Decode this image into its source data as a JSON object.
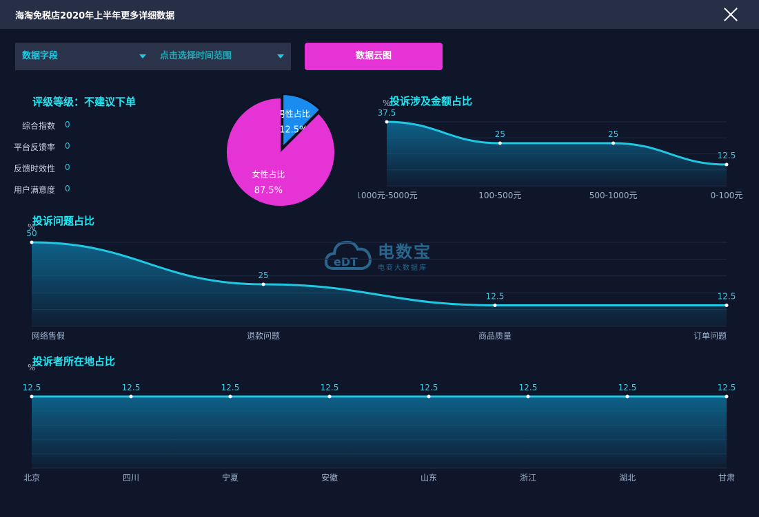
{
  "header": {
    "title": "海淘免税店2020年上半年更多详细数据"
  },
  "filters": {
    "field_label": "数据字段",
    "time_label": "点击选择时间范围",
    "cloud_button": "数据云图"
  },
  "rating": {
    "title": "评级等级：不建议下单",
    "metrics": [
      {
        "label": "综合指数",
        "value": "0"
      },
      {
        "label": "平台反馈率",
        "value": "0"
      },
      {
        "label": "反馈时效性",
        "value": "0"
      },
      {
        "label": "用户满意度",
        "value": "0"
      }
    ]
  },
  "watermark": {
    "name": "电数宝",
    "sub": "电商大数据库",
    "logo_text": "eDT"
  },
  "colors": {
    "accent": "#22e6f2",
    "pink": "#e633d6",
    "blue": "#1a8cf0",
    "line": "#1fc9e3",
    "bg": "#0f1629"
  },
  "chart_data": [
    {
      "id": "gender",
      "type": "pie",
      "title": "",
      "slices": [
        {
          "label": "男性占比",
          "value": 12.5,
          "display": "12.5%",
          "color": "#1a8cf0"
        },
        {
          "label": "女性占比",
          "value": 87.5,
          "display": "87.5%",
          "color": "#e633d6"
        }
      ]
    },
    {
      "id": "amount",
      "type": "area",
      "title": "投诉涉及金额占比",
      "ylabel": "%",
      "categories": [
        "1000元-5000元",
        "100-500元",
        "500-1000元",
        "0-100元"
      ],
      "values": [
        37.5,
        25,
        25,
        12.5
      ],
      "ylim": [
        0,
        37.5
      ]
    },
    {
      "id": "problem",
      "type": "area",
      "title": "投诉问题占比",
      "ylabel": "%",
      "categories": [
        "网络售假",
        "退款问题",
        "商品质量",
        "订单问题"
      ],
      "values": [
        50,
        25,
        12.5,
        12.5
      ],
      "ylim": [
        0,
        50
      ]
    },
    {
      "id": "location",
      "type": "area",
      "title": "投诉者所在地占比",
      "ylabel": "%",
      "categories": [
        "北京",
        "四川",
        "宁夏",
        "安徽",
        "山东",
        "浙江",
        "湖北",
        "甘肃"
      ],
      "values": [
        12.5,
        12.5,
        12.5,
        12.5,
        12.5,
        12.5,
        12.5,
        12.5
      ],
      "ylim": [
        0,
        12.5
      ]
    }
  ]
}
